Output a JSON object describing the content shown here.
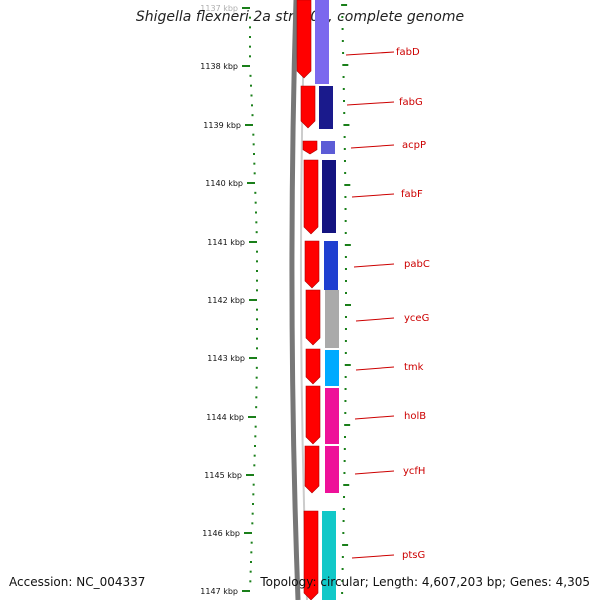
{
  "title": "Shigella flexneri 2a str. 301, complete genome",
  "accession": "Accession: NC_004337",
  "summary": "Topology: circular; Length: 4,607,203 bp; Genes: 4,305",
  "colors": {
    "backbone": "#777777",
    "forward_strand": "#ff0000",
    "tick": "#1a7f1a",
    "label": "#cc0000"
  },
  "ticks": [
    "1137 kbp",
    "1138 kbp",
    "1139 kbp",
    "1140 kbp",
    "1141 kbp",
    "1142 kbp",
    "1143 kbp",
    "1144 kbp",
    "1145 kbp",
    "1146 kbp",
    "1147 kbp"
  ],
  "genes": [
    {
      "name": "fabD",
      "color": "#7b68ee"
    },
    {
      "name": "fabG",
      "color": "#1a1a8c"
    },
    {
      "name": "acpP",
      "color": "#5c5cd6"
    },
    {
      "name": "fabF",
      "color": "#141480"
    },
    {
      "name": "pabC",
      "color": "#1f3fd0"
    },
    {
      "name": "yceG",
      "color": "#aaaaaa"
    },
    {
      "name": "tmk",
      "color": "#00aaff"
    },
    {
      "name": "holB",
      "color": "#ee1199"
    },
    {
      "name": "ycfH",
      "color": "#ee1199"
    },
    {
      "name": "ptsG",
      "color": "#11c8c8"
    }
  ]
}
